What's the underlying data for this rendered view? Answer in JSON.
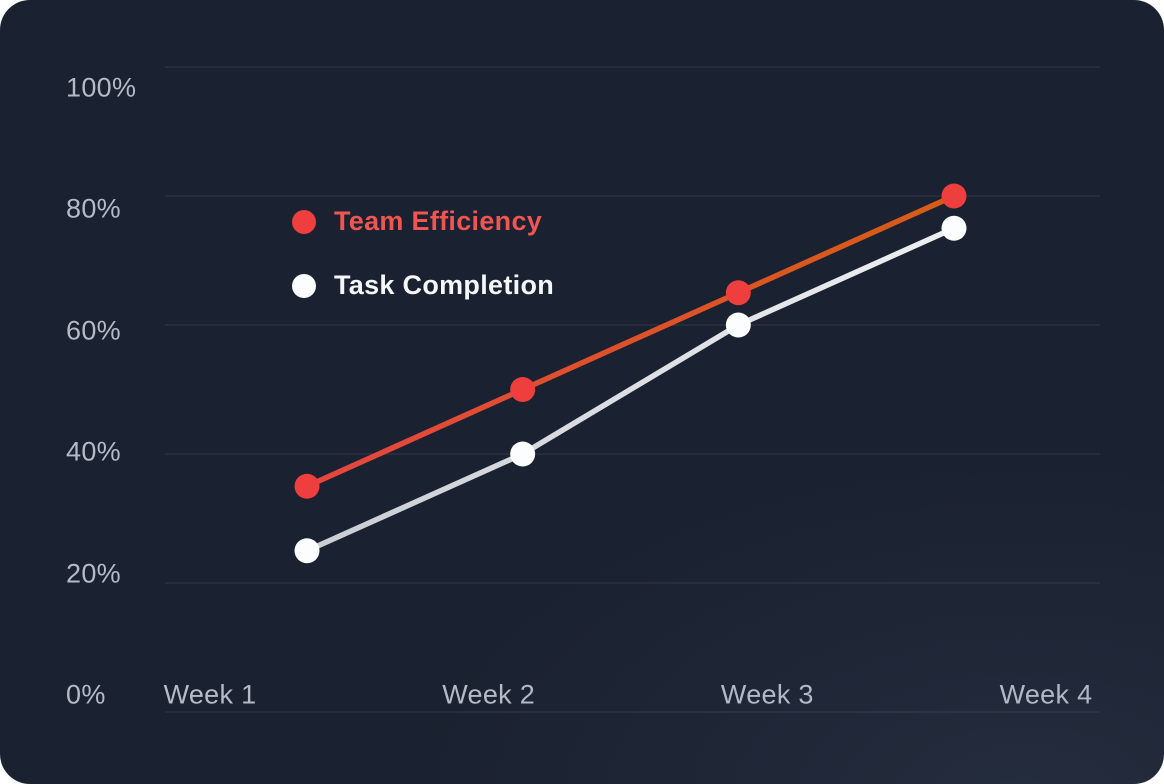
{
  "chart_data": {
    "type": "line",
    "categories": [
      "Week 1",
      "Week 2",
      "Week 3",
      "Week 4"
    ],
    "series": [
      {
        "name": "Team Efficiency",
        "values": [
          35,
          50,
          65,
          80
        ],
        "line_color_start": "#e64540",
        "line_color_end": "#d65d15",
        "marker_color": "#ee3e3e",
        "label_color": "#f05551"
      },
      {
        "name": "Task Completion",
        "values": [
          25,
          40,
          60,
          75
        ],
        "line_color_start": "#c9cdd3",
        "line_color_end": "#eef0f2",
        "marker_color": "#fcfdfe",
        "label_color": "#f4f6f8"
      }
    ],
    "yticks": [
      "100%",
      "80%",
      "60%",
      "40%",
      "20%",
      "0%"
    ],
    "ytick_values": [
      100,
      80,
      60,
      40,
      20,
      0
    ],
    "ylim": [
      0,
      100
    ],
    "grid": true,
    "legend_position": "inside-top-left"
  },
  "colors": {
    "card_background": "#1a2130",
    "gridline": "rgba(255,255,255,0.07)",
    "axis_text": "#b4bbc7"
  }
}
